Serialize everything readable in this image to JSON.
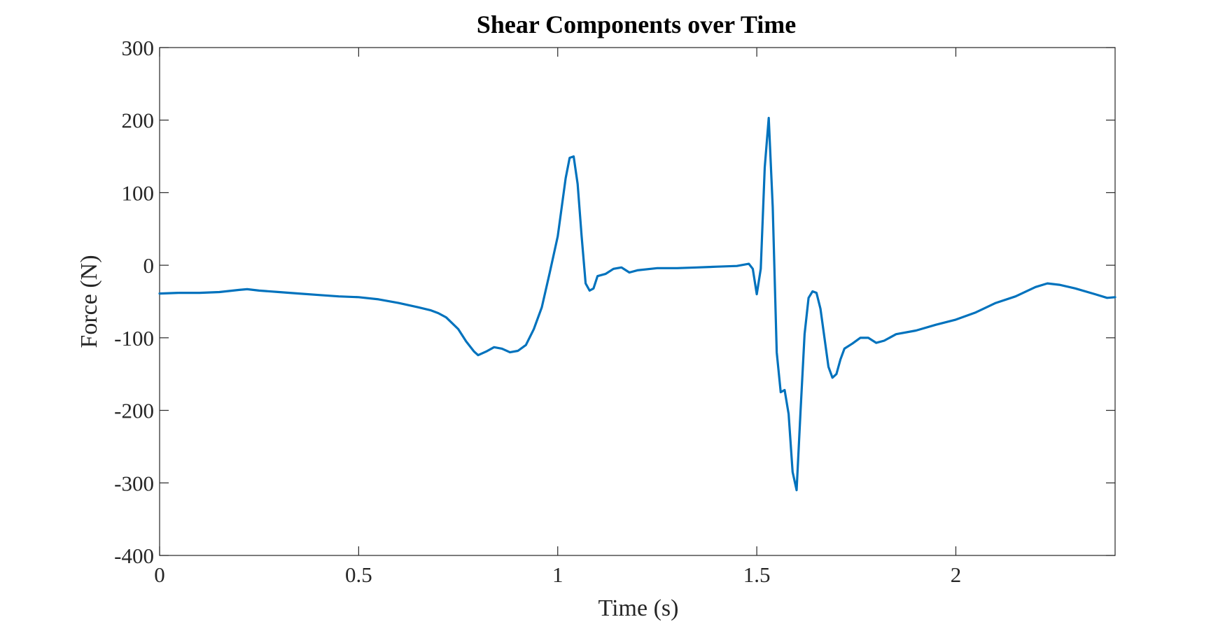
{
  "chart_data": {
    "type": "line",
    "title": "Shear Components over Time",
    "xlabel": "Time (s)",
    "ylabel": "Force (N)",
    "xlim": [
      0,
      2.4
    ],
    "ylim": [
      -400,
      300
    ],
    "x_ticks": [
      0,
      0.5,
      1,
      1.5,
      2
    ],
    "x_tick_labels": [
      "0",
      "0.5",
      "1",
      "1.5",
      "2"
    ],
    "y_ticks": [
      300,
      200,
      100,
      0,
      -100,
      -200,
      -300,
      -400
    ],
    "y_tick_labels": [
      "300",
      "200",
      "100",
      "0",
      "-100",
      "-200",
      "-300",
      "-400"
    ],
    "grid": false,
    "legend": false,
    "series": [
      {
        "color": "#0072BD",
        "points": [
          [
            0.0,
            -39
          ],
          [
            0.05,
            -38
          ],
          [
            0.1,
            -38
          ],
          [
            0.15,
            -37
          ],
          [
            0.2,
            -34
          ],
          [
            0.22,
            -33
          ],
          [
            0.25,
            -35
          ],
          [
            0.3,
            -37
          ],
          [
            0.35,
            -39
          ],
          [
            0.4,
            -41
          ],
          [
            0.45,
            -43
          ],
          [
            0.5,
            -44
          ],
          [
            0.55,
            -47
          ],
          [
            0.6,
            -52
          ],
          [
            0.65,
            -58
          ],
          [
            0.68,
            -62
          ],
          [
            0.7,
            -66
          ],
          [
            0.72,
            -72
          ],
          [
            0.75,
            -88
          ],
          [
            0.77,
            -105
          ],
          [
            0.79,
            -119
          ],
          [
            0.8,
            -124
          ],
          [
            0.82,
            -119
          ],
          [
            0.84,
            -113
          ],
          [
            0.86,
            -115
          ],
          [
            0.88,
            -120
          ],
          [
            0.9,
            -118
          ],
          [
            0.92,
            -110
          ],
          [
            0.94,
            -88
          ],
          [
            0.96,
            -58
          ],
          [
            0.98,
            -10
          ],
          [
            1.0,
            40
          ],
          [
            1.02,
            120
          ],
          [
            1.03,
            148
          ],
          [
            1.04,
            150
          ],
          [
            1.05,
            112
          ],
          [
            1.06,
            40
          ],
          [
            1.07,
            -25
          ],
          [
            1.08,
            -35
          ],
          [
            1.09,
            -32
          ],
          [
            1.1,
            -15
          ],
          [
            1.12,
            -12
          ],
          [
            1.14,
            -5
          ],
          [
            1.16,
            -3
          ],
          [
            1.18,
            -10
          ],
          [
            1.2,
            -7
          ],
          [
            1.25,
            -4
          ],
          [
            1.3,
            -4
          ],
          [
            1.35,
            -3
          ],
          [
            1.4,
            -2
          ],
          [
            1.45,
            -1
          ],
          [
            1.48,
            2
          ],
          [
            1.49,
            -5
          ],
          [
            1.5,
            -40
          ],
          [
            1.51,
            -5
          ],
          [
            1.52,
            135
          ],
          [
            1.53,
            203
          ],
          [
            1.54,
            80
          ],
          [
            1.55,
            -120
          ],
          [
            1.56,
            -175
          ],
          [
            1.57,
            -172
          ],
          [
            1.58,
            -205
          ],
          [
            1.59,
            -285
          ],
          [
            1.6,
            -310
          ],
          [
            1.61,
            -200
          ],
          [
            1.62,
            -95
          ],
          [
            1.63,
            -45
          ],
          [
            1.64,
            -36
          ],
          [
            1.65,
            -38
          ],
          [
            1.66,
            -60
          ],
          [
            1.67,
            -100
          ],
          [
            1.68,
            -140
          ],
          [
            1.69,
            -155
          ],
          [
            1.7,
            -150
          ],
          [
            1.71,
            -130
          ],
          [
            1.72,
            -115
          ],
          [
            1.74,
            -108
          ],
          [
            1.76,
            -100
          ],
          [
            1.78,
            -100
          ],
          [
            1.8,
            -107
          ],
          [
            1.82,
            -104
          ],
          [
            1.85,
            -95
          ],
          [
            1.9,
            -90
          ],
          [
            1.95,
            -82
          ],
          [
            2.0,
            -75
          ],
          [
            2.05,
            -65
          ],
          [
            2.1,
            -52
          ],
          [
            2.15,
            -43
          ],
          [
            2.2,
            -30
          ],
          [
            2.23,
            -25
          ],
          [
            2.26,
            -27
          ],
          [
            2.3,
            -32
          ],
          [
            2.35,
            -40
          ],
          [
            2.38,
            -45
          ],
          [
            2.4,
            -44
          ]
        ]
      }
    ]
  }
}
